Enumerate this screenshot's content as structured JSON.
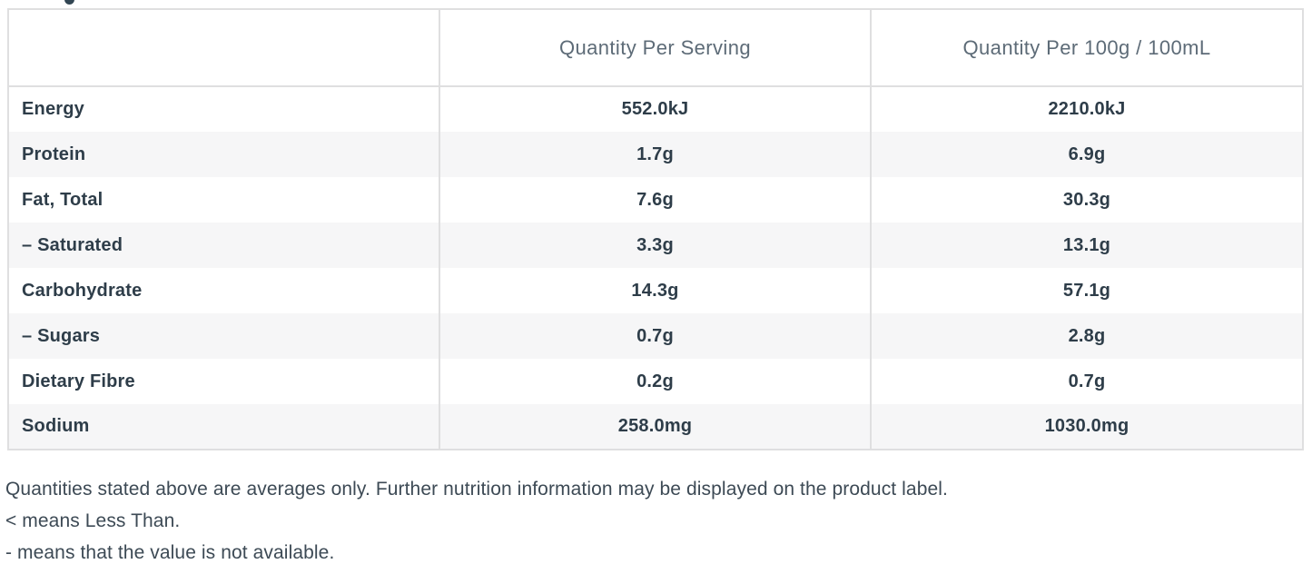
{
  "table": {
    "columns": [
      "",
      "Quantity Per Serving",
      "Quantity Per 100g / 100mL"
    ],
    "rows": [
      {
        "label": "Energy",
        "per_serving": "552.0kJ",
        "per_100g": "2210.0kJ"
      },
      {
        "label": "Protein",
        "per_serving": "1.7g",
        "per_100g": "6.9g"
      },
      {
        "label": "Fat, Total",
        "per_serving": "7.6g",
        "per_100g": "30.3g"
      },
      {
        "label": "– Saturated",
        "per_serving": "3.3g",
        "per_100g": "13.1g"
      },
      {
        "label": "Carbohydrate",
        "per_serving": "14.3g",
        "per_100g": "57.1g"
      },
      {
        "label": "– Sugars",
        "per_serving": "0.7g",
        "per_100g": "2.8g"
      },
      {
        "label": "Dietary Fibre",
        "per_serving": "0.2g",
        "per_100g": "0.7g"
      },
      {
        "label": "Sodium",
        "per_serving": "258.0mg",
        "per_100g": "1030.0mg"
      }
    ]
  },
  "footnotes": {
    "line1": "Quantities stated above are averages only. Further nutrition information may be displayed on the product label.",
    "line2": "< means Less Than.",
    "line3": "- means that the value is not available."
  },
  "colors": {
    "label_text": "#2e3d49",
    "header_text": "#5d6b77",
    "footnote_text": "#3d4a55",
    "stripe": "#f6f6f7",
    "border": "#dfdfe0"
  }
}
